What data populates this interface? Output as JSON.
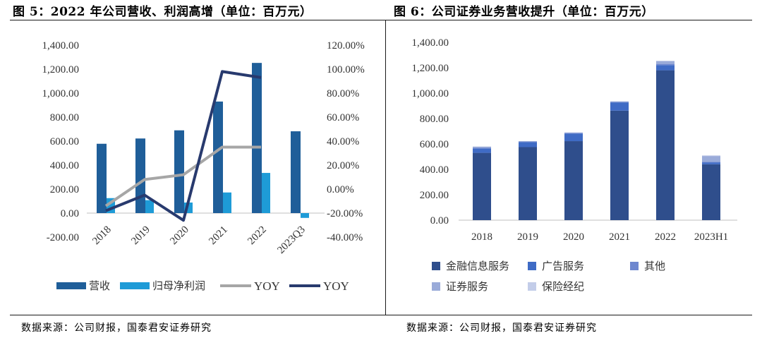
{
  "left": {
    "title": "图 5：2022 年公司营收、利润高增（单位：百万元）",
    "source": "数据来源：公司财报，国泰君安证券研究"
  },
  "right": {
    "title": "图 6：公司证券业务营收提升（单位：百万元）",
    "source": "数据来源：公司财报，国泰君安证券研究"
  },
  "colors": {
    "revenue": "#1f5e99",
    "profit": "#1e9bd7",
    "yoy_revenue": "#a6a6a6",
    "yoy_profit": "#283a6e",
    "finance": "#2f4e8c",
    "ads": "#3f6bc5",
    "other": "#6e87cf",
    "securities": "#9aabd9",
    "insurance": "#c3cde9"
  },
  "chart_data": [
    {
      "type": "bar",
      "title": "2022 年公司营收、利润高增",
      "categories": [
        "2018",
        "2019",
        "2020",
        "2021",
        "2022",
        "2023Q3"
      ],
      "series": [
        {
          "name": "营收",
          "values": [
            578,
            622,
            690,
            930,
            1252,
            682
          ]
        },
        {
          "name": "归母净利润",
          "values": [
            125,
            108,
            88,
            172,
            335,
            -40
          ]
        }
      ],
      "line_series": [
        {
          "name": "YOY",
          "axis": "right",
          "values": [
            -14,
            8,
            12,
            35,
            35
          ]
        },
        {
          "name": "YOY",
          "axis": "right",
          "values": [
            -18,
            -5,
            -26,
            98,
            93
          ]
        }
      ],
      "y_left": {
        "min": -200,
        "max": 1400,
        "step": 200,
        "ticks": [
          "-200.00",
          "0.00",
          "200.00",
          "400.00",
          "600.00",
          "800.00",
          "1,000.00",
          "1,200.00",
          "1,400.00"
        ]
      },
      "y_right": {
        "min": -40,
        "max": 120,
        "step": 20,
        "ticks": [
          "-40.00%",
          "-20.00%",
          "0.00%",
          "20.00%",
          "40.00%",
          "60.00%",
          "80.00%",
          "100.00%",
          "120.00%"
        ]
      },
      "legend": [
        "营收",
        "归母净利润",
        "YOY",
        "YOY"
      ]
    },
    {
      "type": "bar",
      "stacked": true,
      "title": "公司证券业务营收提升",
      "categories": [
        "2018",
        "2019",
        "2020",
        "2021",
        "2022",
        "2023H1"
      ],
      "series": [
        {
          "name": "金融信息服务",
          "values": [
            530,
            575,
            622,
            862,
            1180,
            440
          ]
        },
        {
          "name": "广告服务",
          "values": [
            35,
            40,
            60,
            65,
            40,
            15
          ]
        },
        {
          "name": "其他",
          "values": [
            5,
            4,
            5,
            4,
            10,
            5
          ]
        },
        {
          "name": "证券服务",
          "values": [
            8,
            3,
            3,
            4,
            22,
            45
          ]
        },
        {
          "name": "保险经纪",
          "values": [
            2,
            0,
            0,
            0,
            3,
            5
          ]
        }
      ],
      "y": {
        "min": 0,
        "max": 1400,
        "step": 200,
        "ticks": [
          "0.00",
          "200.00",
          "400.00",
          "600.00",
          "800.00",
          "1,000.00",
          "1,200.00",
          "1,400.00"
        ]
      },
      "legend": [
        "金融信息服务",
        "广告服务",
        "其他",
        "证券服务",
        "保险经纪"
      ]
    }
  ]
}
